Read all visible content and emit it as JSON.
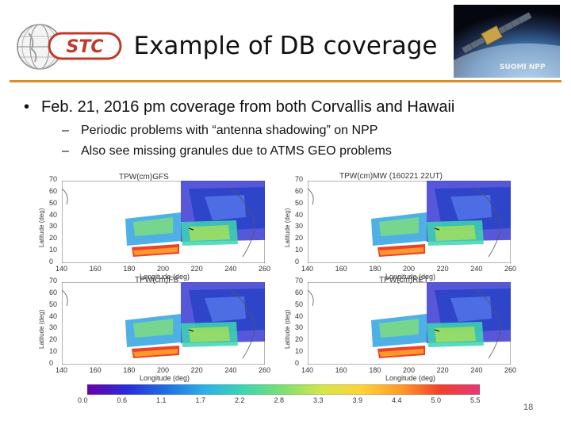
{
  "header": {
    "title": "Example of DB coverage",
    "logo_text": "STC",
    "satellite_label": "SUOMI NPP"
  },
  "bullets": {
    "main": "Feb. 21, 2016 pm coverage from both Corvallis and Hawaii",
    "sub": [
      "Periodic problems with “antenna shadowing” on NPP",
      "Also see missing granules due to ATMS GEO problems"
    ]
  },
  "maps": {
    "panel_titles": [
      "TPW(cm)GFS",
      "TPW(cm)MW (160221 22UT)",
      "TPW(cm)FS",
      "TPW(cm)RET"
    ],
    "x_ticks": [
      "140",
      "160",
      "180",
      "200",
      "220",
      "240",
      "260"
    ],
    "y_ticks": [
      "70",
      "60",
      "50",
      "40",
      "30",
      "20",
      "10",
      "0"
    ],
    "y_label": "Latitude (deg)",
    "x_label": "Longitude (deg)"
  },
  "colorbar": {
    "ticks": [
      "0.0",
      "0.6",
      "1.1",
      "1.7",
      "2.2",
      "2.8",
      "3.3",
      "3.9",
      "4.4",
      "5.0",
      "5.5"
    ],
    "colors": [
      "#6a00a8",
      "#2b2bd8",
      "#1f6fe0",
      "#2fb0e8",
      "#3dd6b0",
      "#7fe070",
      "#d6e64a",
      "#ffd23a",
      "#ff9a2a",
      "#f0402a",
      "#e23a7a"
    ]
  },
  "footer": {
    "page_number": "18"
  }
}
